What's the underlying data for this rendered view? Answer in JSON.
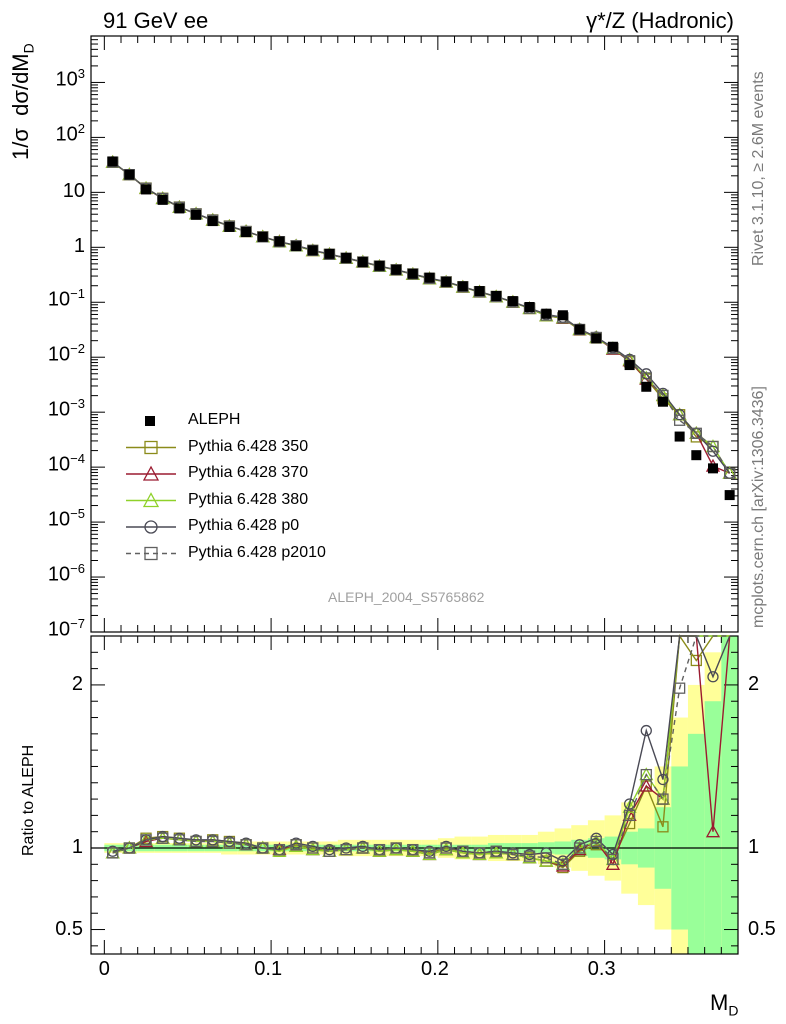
{
  "header": {
    "left": "91 GeV ee",
    "right": "γ*/Z (Hadronic)"
  },
  "side_labels": {
    "rivet": "Rivet 3.1.10, ≥ 2.6M events",
    "mcplots": "mcplots.cern.ch [arXiv:1306.3436]"
  },
  "watermark": "ALEPH_2004_S5765862",
  "chart_data": {
    "type": "scatter",
    "xlabel": "M_D",
    "ylabel": "1/σ dσ/dM_D",
    "ratio_ylabel": "Ratio to ALEPH",
    "xlim": [
      -0.008,
      0.38
    ],
    "ylim": [
      1e-07,
      7000
    ],
    "yscale": "log",
    "ratio_ylim": [
      0.35,
      2.3
    ],
    "x_ticks": [
      "0",
      "0.1",
      "0.2",
      "0.3"
    ],
    "y_ticks": [
      "10^-7",
      "10^-6",
      "10^-5",
      "10^-4",
      "10^-3",
      "10^-2",
      "10^-1",
      "1",
      "10",
      "10^2",
      "10^3"
    ],
    "ratio_ticks": [
      "0.5",
      "1",
      "2"
    ],
    "legend_position": "bottom-left",
    "x": [
      0.005,
      0.015,
      0.025,
      0.035,
      0.045,
      0.055,
      0.065,
      0.075,
      0.085,
      0.095,
      0.105,
      0.115,
      0.125,
      0.135,
      0.145,
      0.155,
      0.165,
      0.175,
      0.185,
      0.195,
      0.205,
      0.215,
      0.225,
      0.235,
      0.245,
      0.255,
      0.265,
      0.275,
      0.285,
      0.295,
      0.305,
      0.315,
      0.325,
      0.335,
      0.345,
      0.355,
      0.365,
      0.375
    ],
    "data": {
      "name": "ALEPH",
      "color": "#000000",
      "values": [
        36.5,
        21.0,
        11.3,
        7.3,
        5.1,
        3.9,
        3.0,
        2.35,
        1.9,
        1.55,
        1.28,
        1.05,
        0.88,
        0.76,
        0.64,
        0.54,
        0.46,
        0.39,
        0.33,
        0.28,
        0.235,
        0.195,
        0.16,
        0.13,
        0.105,
        0.082,
        0.062,
        0.058,
        0.032,
        0.022,
        0.0155,
        0.0072,
        0.0029,
        0.00155,
        0.00036,
        0.000165,
        9.5e-05,
        3.1e-05
      ]
    },
    "ratio_bands": {
      "inner": [
        0.02,
        0.02,
        0.02,
        0.02,
        0.02,
        0.02,
        0.02,
        0.02,
        0.02,
        0.02,
        0.02,
        0.02,
        0.02,
        0.02,
        0.02,
        0.02,
        0.02,
        0.02,
        0.02,
        0.02,
        0.02,
        0.02,
        0.02,
        0.03,
        0.03,
        0.03,
        0.035,
        0.04,
        0.05,
        0.06,
        0.07,
        0.1,
        0.12,
        0.25,
        0.5,
        0.7,
        0.9,
        1.3
      ],
      "outer": [
        0.03,
        0.03,
        0.03,
        0.03,
        0.03,
        0.03,
        0.03,
        0.04,
        0.04,
        0.04,
        0.04,
        0.04,
        0.04,
        0.04,
        0.05,
        0.05,
        0.05,
        0.05,
        0.05,
        0.05,
        0.06,
        0.07,
        0.07,
        0.08,
        0.08,
        0.08,
        0.1,
        0.12,
        0.14,
        0.17,
        0.2,
        0.28,
        0.35,
        0.5,
        0.8,
        1.0,
        1.2,
        1.6
      ]
    },
    "series": [
      {
        "name": "Pythia 6.428 350",
        "color": "#8b8b1a",
        "marker": "square",
        "dash": "",
        "ratio": [
          0.97,
          1.0,
          1.06,
          1.07,
          1.06,
          1.04,
          1.05,
          1.04,
          1.02,
          1.0,
          0.98,
          1.02,
          1.0,
          0.98,
          0.99,
          1.0,
          0.99,
          1.0,
          0.99,
          0.97,
          1.0,
          0.98,
          0.97,
          0.98,
          0.96,
          0.94,
          0.92,
          0.88,
          0.98,
          1.02,
          0.93,
          1.15,
          1.38,
          1.13,
          2.5,
          2.15,
          2.5,
          2.5
        ]
      },
      {
        "name": "Pythia 6.428 370",
        "color": "#9b1b30",
        "marker": "triangle",
        "dash": "",
        "ratio": [
          0.97,
          1.0,
          1.04,
          1.06,
          1.05,
          1.04,
          1.04,
          1.03,
          1.02,
          1.0,
          0.99,
          1.01,
          0.99,
          0.98,
          0.99,
          1.0,
          0.98,
          0.99,
          0.98,
          0.96,
          0.99,
          0.97,
          0.96,
          0.97,
          0.96,
          0.94,
          0.92,
          0.89,
          0.99,
          1.04,
          0.9,
          1.2,
          1.38,
          1.3,
          2.5,
          2.5,
          1.1,
          2.5
        ]
      },
      {
        "name": "Pythia 6.428 380",
        "color": "#8fd12a",
        "marker": "triangle",
        "dash": "",
        "ratio": [
          0.97,
          1.0,
          1.05,
          1.06,
          1.05,
          1.04,
          1.04,
          1.03,
          1.02,
          1.0,
          0.98,
          1.01,
          0.99,
          0.98,
          0.99,
          1.0,
          0.98,
          0.99,
          0.98,
          0.96,
          0.99,
          0.97,
          0.96,
          0.97,
          0.96,
          0.94,
          0.92,
          0.9,
          1.0,
          1.04,
          0.93,
          1.25,
          1.45,
          1.3,
          2.5,
          2.5,
          2.5,
          2.5
        ]
      },
      {
        "name": "Pythia 6.428 p0",
        "color": "#4a4a55",
        "marker": "circle",
        "dash": "",
        "ratio": [
          0.98,
          1.0,
          1.05,
          1.07,
          1.06,
          1.05,
          1.05,
          1.04,
          1.03,
          1.0,
          0.99,
          1.03,
          1.01,
          0.99,
          1.0,
          1.01,
          0.99,
          1.0,
          0.99,
          0.98,
          1.01,
          0.98,
          0.97,
          0.98,
          0.97,
          0.96,
          0.97,
          0.92,
          1.02,
          1.06,
          0.96,
          1.27,
          1.72,
          1.42,
          2.5,
          2.5,
          2.05,
          2.5
        ]
      },
      {
        "name": "Pythia 6.428 p2010",
        "color": "#606060",
        "marker": "square",
        "dash": "5,4",
        "ratio": [
          0.97,
          1.0,
          1.05,
          1.06,
          1.05,
          1.04,
          1.04,
          1.03,
          1.02,
          1.0,
          0.99,
          1.02,
          1.0,
          0.98,
          0.99,
          1.0,
          0.99,
          1.0,
          0.99,
          0.97,
          1.0,
          0.98,
          0.97,
          0.98,
          0.96,
          0.95,
          0.94,
          0.9,
          1.0,
          1.04,
          0.93,
          1.2,
          1.45,
          1.3,
          1.98,
          2.5,
          2.5,
          2.5
        ]
      }
    ]
  }
}
